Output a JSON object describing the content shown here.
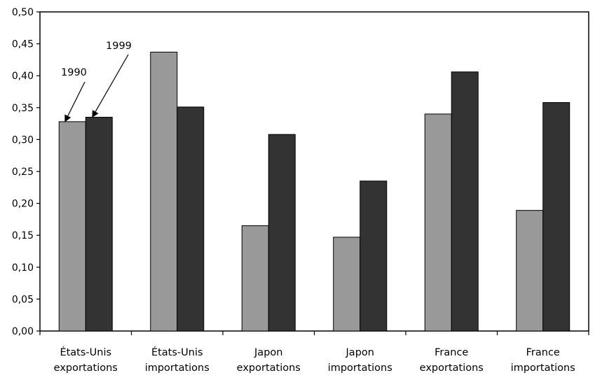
{
  "chart_data": {
    "type": "bar",
    "categories": [
      [
        "États-Unis",
        "exportations"
      ],
      [
        "États-Unis",
        "importations"
      ],
      [
        "Japon",
        "exportations"
      ],
      [
        "Japon",
        "importations"
      ],
      [
        "France",
        "exportations"
      ],
      [
        "France",
        "importations"
      ]
    ],
    "series": [
      {
        "name": "1990",
        "color": "#999999",
        "values": [
          0.328,
          0.437,
          0.165,
          0.147,
          0.34,
          0.189
        ]
      },
      {
        "name": "1999",
        "color": "#333333",
        "values": [
          0.335,
          0.351,
          0.308,
          0.235,
          0.406,
          0.358
        ]
      }
    ],
    "ylim": [
      0,
      0.5
    ],
    "yticks": [
      "0,00",
      "0,05",
      "0,10",
      "0,15",
      "0,20",
      "0,25",
      "0,30",
      "0,35",
      "0,40",
      "0,45",
      "0,50"
    ],
    "grid": false,
    "legend": "none",
    "annotations": [
      {
        "text": "1990",
        "series": 0,
        "category": 0
      },
      {
        "text": "1999",
        "series": 1,
        "category": 0
      }
    ]
  }
}
